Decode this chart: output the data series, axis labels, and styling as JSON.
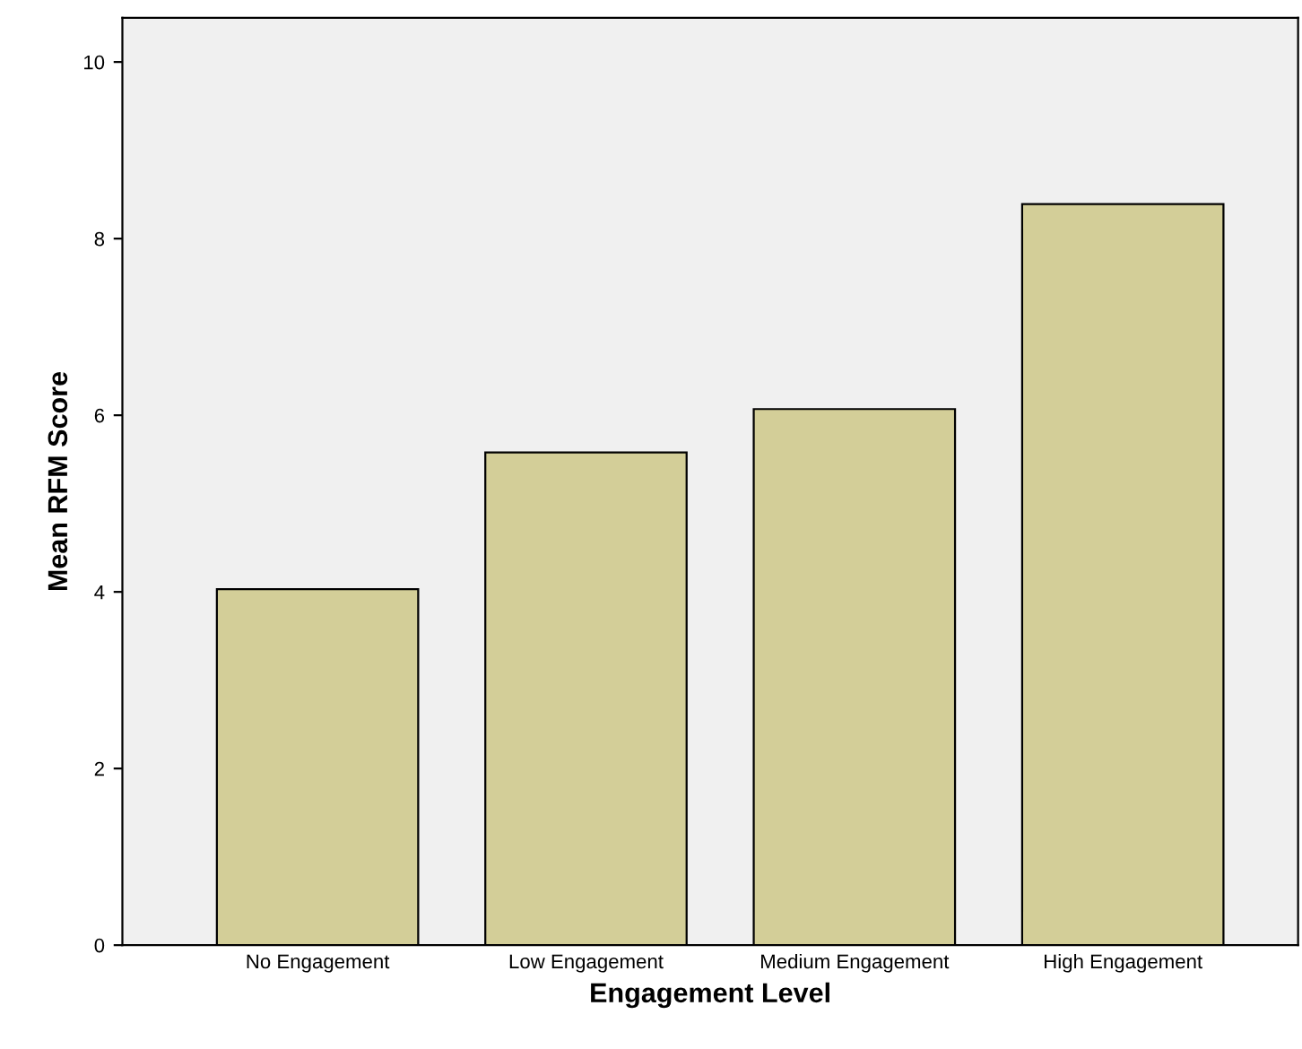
{
  "chart_data": {
    "type": "bar",
    "xlabel": "Engagement Level",
    "ylabel": "Mean RFM Score",
    "categories": [
      "No Engagement",
      "Low Engagement",
      "Medium Engagement",
      "High Engagement"
    ],
    "values": [
      4.03,
      5.58,
      6.07,
      8.39
    ],
    "color": "#d3ce98",
    "ylim": [
      0,
      10.5
    ],
    "yticks": [
      0,
      2,
      4,
      6,
      8,
      10
    ],
    "grid": false,
    "legend": false
  }
}
